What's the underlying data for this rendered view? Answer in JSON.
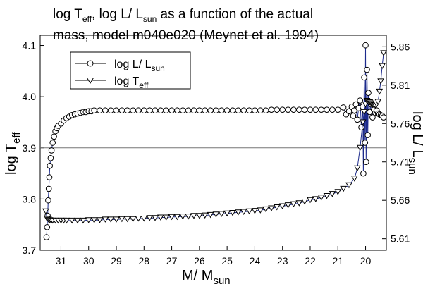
{
  "chart_data": {
    "type": "line",
    "title": {
      "line1_prefix": "log T",
      "line1_sub1": "eff",
      "line1_mid": ", log L/ L",
      "line1_sub2": "sun",
      "line1_suffix": " as a function of the actual",
      "line2": "mass, model m040e020 (Meynet et al. 1994)"
    },
    "xlabel": {
      "main": "M/ M",
      "sub": "sun"
    },
    "ylabel_left": {
      "main": "log T",
      "sub": "eff"
    },
    "ylabel_right": {
      "main": "log L/ L",
      "sub": "sun"
    },
    "x_reversed": true,
    "xlim": [
      31.75,
      19.25
    ],
    "ylim_left": [
      3.7,
      4.12
    ],
    "ylim_right": [
      5.595,
      5.875
    ],
    "x_ticks": [
      "31",
      "30",
      "29",
      "28",
      "27",
      "26",
      "25",
      "24",
      "23",
      "22",
      "21",
      "20"
    ],
    "y_left_ticks": [
      "3.7",
      "3.8",
      "3.9",
      "4.0",
      "4.1"
    ],
    "y_right_ticks": [
      "5.61",
      "5.66",
      "5.71",
      "5.76",
      "5.81",
      "5.86"
    ],
    "hline_left_y": 3.9,
    "legend": {
      "position": "top-left",
      "entries": [
        {
          "label_main": "log L/ L",
          "label_sub": "sun",
          "marker": "circle"
        },
        {
          "label_main": "log T",
          "label_sub": "eff",
          "marker": "triangle-down"
        }
      ]
    },
    "series": [
      {
        "name": "log L/ L_sun",
        "axis": "right",
        "marker": "circle",
        "x": [
          31.52,
          31.5,
          31.48,
          31.46,
          31.44,
          31.42,
          31.4,
          31.37,
          31.34,
          31.3,
          31.25,
          31.2,
          31.15,
          31.1,
          31.0,
          30.9,
          30.8,
          30.7,
          30.6,
          30.5,
          30.4,
          30.3,
          30.2,
          30.1,
          30.0,
          29.9,
          29.8,
          29.6,
          29.4,
          29.2,
          29.0,
          28.8,
          28.6,
          28.4,
          28.2,
          28.0,
          27.8,
          27.6,
          27.4,
          27.2,
          27.0,
          26.8,
          26.6,
          26.4,
          26.2,
          26.0,
          25.8,
          25.6,
          25.4,
          25.2,
          25.0,
          24.8,
          24.6,
          24.4,
          24.2,
          24.0,
          23.8,
          23.6,
          23.4,
          23.2,
          23.0,
          22.8,
          22.6,
          22.4,
          22.2,
          22.0,
          21.8,
          21.6,
          21.4,
          21.2,
          21.0,
          20.8,
          20.7,
          20.6,
          20.5,
          20.45,
          20.4,
          20.35,
          20.3,
          20.25,
          20.2,
          20.15,
          20.1,
          20.08,
          20.05,
          20.02,
          20.0,
          19.98,
          19.95,
          19.92,
          19.9,
          19.85,
          19.8,
          19.75,
          19.7,
          19.65,
          19.6,
          19.55,
          19.5,
          19.45,
          19.4,
          19.35
        ],
        "values": [
          5.612,
          5.625,
          5.64,
          5.66,
          5.675,
          5.69,
          5.705,
          5.715,
          5.725,
          5.735,
          5.743,
          5.75,
          5.754,
          5.757,
          5.76,
          5.764,
          5.767,
          5.769,
          5.771,
          5.772,
          5.773,
          5.774,
          5.775,
          5.775,
          5.776,
          5.776,
          5.777,
          5.777,
          5.777,
          5.777,
          5.777,
          5.777,
          5.777,
          5.777,
          5.777,
          5.777,
          5.777,
          5.777,
          5.777,
          5.777,
          5.777,
          5.777,
          5.777,
          5.777,
          5.777,
          5.777,
          5.777,
          5.777,
          5.777,
          5.777,
          5.777,
          5.777,
          5.777,
          5.777,
          5.777,
          5.777,
          5.777,
          5.777,
          5.778,
          5.778,
          5.778,
          5.778,
          5.778,
          5.778,
          5.778,
          5.778,
          5.778,
          5.778,
          5.778,
          5.778,
          5.778,
          5.781,
          5.772,
          5.776,
          5.782,
          5.77,
          5.777,
          5.785,
          5.765,
          5.78,
          5.79,
          5.755,
          5.782,
          5.695,
          5.82,
          5.735,
          5.862,
          5.71,
          5.83,
          5.745,
          5.8,
          5.775,
          5.785,
          5.768,
          5.778,
          5.774,
          5.777,
          5.773,
          5.772,
          5.771,
          5.77,
          5.768
        ]
      },
      {
        "name": "log T_eff",
        "axis": "left",
        "marker": "triangle-down",
        "x": [
          31.55,
          31.5,
          31.45,
          31.4,
          31.35,
          31.3,
          31.2,
          31.1,
          31.0,
          30.9,
          30.8,
          30.6,
          30.4,
          30.2,
          30.0,
          29.8,
          29.6,
          29.4,
          29.2,
          29.0,
          28.8,
          28.6,
          28.4,
          28.2,
          28.0,
          27.8,
          27.6,
          27.4,
          27.2,
          27.0,
          26.8,
          26.6,
          26.4,
          26.2,
          26.0,
          25.8,
          25.6,
          25.4,
          25.2,
          25.0,
          24.8,
          24.6,
          24.4,
          24.2,
          24.0,
          23.8,
          23.6,
          23.4,
          23.2,
          23.0,
          22.8,
          22.6,
          22.4,
          22.2,
          22.0,
          21.8,
          21.6,
          21.4,
          21.2,
          21.0,
          20.8,
          20.6,
          20.4,
          20.3,
          20.2,
          20.1,
          20.05,
          20.0,
          19.95,
          19.9,
          19.85,
          19.8,
          19.75,
          19.7,
          19.65,
          19.6,
          19.55,
          19.5,
          19.45,
          19.4,
          19.35
        ],
        "values": [
          3.776,
          3.762,
          3.76,
          3.759,
          3.758,
          3.758,
          3.758,
          3.758,
          3.758,
          3.758,
          3.758,
          3.758,
          3.758,
          3.758,
          3.759,
          3.759,
          3.759,
          3.76,
          3.76,
          3.76,
          3.761,
          3.761,
          3.761,
          3.762,
          3.762,
          3.763,
          3.763,
          3.764,
          3.764,
          3.765,
          3.765,
          3.766,
          3.766,
          3.767,
          3.767,
          3.768,
          3.769,
          3.77,
          3.771,
          3.772,
          3.773,
          3.774,
          3.775,
          3.776,
          3.777,
          3.778,
          3.78,
          3.782,
          3.784,
          3.786,
          3.788,
          3.79,
          3.792,
          3.795,
          3.798,
          3.8,
          3.803,
          3.806,
          3.81,
          3.814,
          3.82,
          3.827,
          3.84,
          3.86,
          3.9,
          3.95,
          3.97,
          3.985,
          3.992,
          3.99,
          3.989,
          3.987,
          3.985,
          3.984,
          3.983,
          3.985,
          3.99,
          4.01,
          4.03,
          4.06,
          4.085
        ]
      }
    ]
  }
}
